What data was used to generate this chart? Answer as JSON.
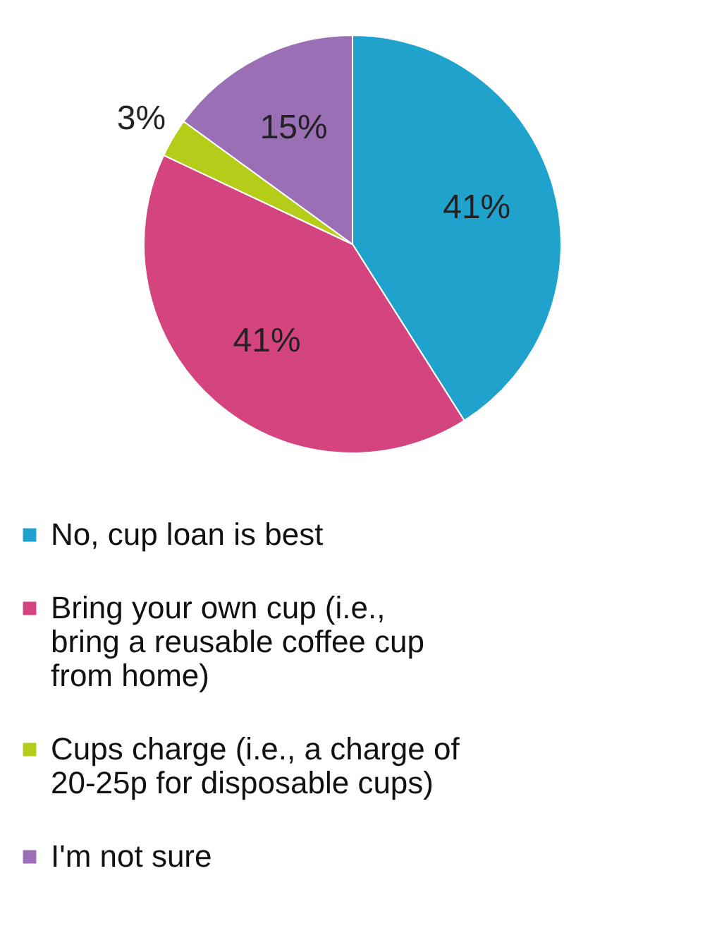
{
  "chart_data": {
    "type": "pie",
    "categories": [
      "No, cup loan is best",
      "Bring your own cup (i.e., bring a reusable coffee cup from home)",
      "Cups charge (i.e., a charge of 20-25p for disposable cups)",
      "I'm not sure"
    ],
    "values": [
      41,
      41,
      3,
      15
    ],
    "colors": [
      "#1fa2cc",
      "#d4457f",
      "#b5cc18",
      "#9a6fb6"
    ],
    "value_labels": [
      "41%",
      "41%",
      "3%",
      "15%"
    ],
    "legend": "bottom"
  }
}
